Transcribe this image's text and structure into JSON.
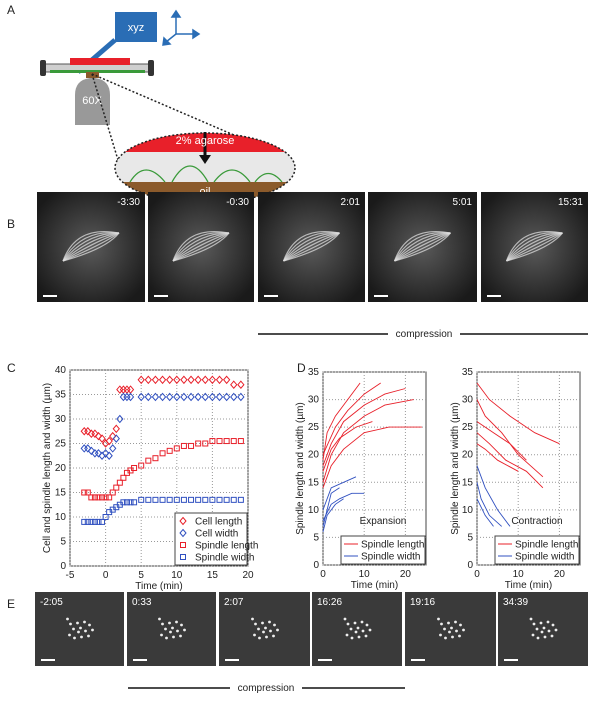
{
  "figure": {
    "panel_labels": [
      "A",
      "B",
      "C",
      "D",
      "E"
    ],
    "schematic": {
      "stage": "xyz",
      "objective": "60X",
      "top_layer": "2% agarose",
      "bottom_layer": "oil"
    },
    "panel_b": {
      "times": [
        "-3:30",
        "-0:30",
        "2:01",
        "5:01",
        "15:31"
      ],
      "label": "compression"
    },
    "panel_e": {
      "times": [
        "-2:05",
        "0:33",
        "2:07",
        "16:26",
        "19:16",
        "34:39"
      ],
      "label": "compression"
    }
  },
  "chart_data": [
    {
      "type": "scatter",
      "xlabel": "Time (min)",
      "ylabel": "Cell and spindle length and width (µm)",
      "xlim": [
        -5,
        20
      ],
      "xticks": [
        -5,
        0,
        5,
        10,
        15,
        20
      ],
      "ylim": [
        0,
        40
      ],
      "yticks": [
        0,
        5,
        10,
        15,
        20,
        25,
        30,
        35,
        40
      ],
      "grid": true,
      "legend": "lower right",
      "x": [
        -3,
        -2.5,
        -2,
        -1.5,
        -1,
        -0.5,
        0,
        0.5,
        1,
        1.5,
        2,
        2.5,
        3,
        3.5,
        4,
        5,
        6,
        7,
        8,
        9,
        10,
        11,
        12,
        13,
        14,
        15,
        16,
        17,
        18,
        19
      ],
      "series": [
        {
          "name": "Cell length",
          "color": "#e8202a",
          "marker": "diamond",
          "values": [
            27.5,
            27.5,
            27,
            27,
            26.5,
            26,
            25,
            25.5,
            26.5,
            28,
            36,
            36,
            36,
            36,
            null,
            38,
            38,
            38,
            38,
            38,
            38,
            38,
            38,
            38,
            38,
            38,
            38,
            38,
            37,
            37
          ]
        },
        {
          "name": "Cell width",
          "color": "#3050c0",
          "marker": "diamond",
          "values": [
            24,
            24,
            23.5,
            23,
            23,
            22.5,
            23,
            22.5,
            24,
            26,
            30,
            34.5,
            34.5,
            34.5,
            null,
            34.5,
            34.5,
            34.5,
            34.5,
            34.5,
            34.5,
            34.5,
            34.5,
            34.5,
            34.5,
            34.5,
            34.5,
            34.5,
            34.5,
            34.5
          ]
        },
        {
          "name": "Spindle length",
          "color": "#e8202a",
          "marker": "square",
          "values": [
            15,
            15,
            14,
            14,
            14,
            14,
            14,
            14,
            15,
            16,
            17,
            18,
            19,
            19.5,
            20,
            20.5,
            21.5,
            22,
            23,
            23.5,
            24,
            24.5,
            24.5,
            25,
            25,
            25.5,
            25.5,
            25.5,
            25.5,
            25.5
          ]
        },
        {
          "name": "Spindle width",
          "color": "#3050c0",
          "marker": "square",
          "values": [
            9,
            9,
            9,
            9,
            9,
            9,
            10,
            11,
            11.5,
            12,
            12.5,
            13,
            13,
            13,
            13,
            13.5,
            13.5,
            13.5,
            13.5,
            13.5,
            13.5,
            13.5,
            13.5,
            13.5,
            13.5,
            13.5,
            13.5,
            13.5,
            13.5,
            13.5
          ]
        }
      ]
    },
    {
      "type": "line",
      "xlabel": "Time (min)",
      "ylabel": "Spindle length and  width (µm)",
      "annotation": "Expansion",
      "xlim": [
        0,
        25
      ],
      "xticks": [
        0,
        10,
        20
      ],
      "ylim": [
        0,
        35
      ],
      "yticks": [
        0,
        5,
        10,
        15,
        20,
        25,
        30,
        35
      ],
      "grid": true,
      "legend": "lower right",
      "series": [
        {
          "name": "Spindle length",
          "color": "#e8202a",
          "lines": [
            {
              "x": [
                0,
                2,
                5,
                10,
                15,
                20
              ],
              "values": [
                18,
                22,
                26,
                29,
                31,
                32
              ]
            },
            {
              "x": [
                0,
                2,
                5,
                10,
                15,
                22
              ],
              "values": [
                15,
                20,
                24,
                27,
                29,
                30
              ]
            },
            {
              "x": [
                0,
                3,
                6,
                10,
                14
              ],
              "values": [
                20,
                25,
                28,
                31,
                33
              ]
            },
            {
              "x": [
                0,
                2,
                5,
                10,
                16,
                24
              ],
              "values": [
                14,
                18,
                21,
                24,
                25,
                25
              ]
            },
            {
              "x": [
                0,
                2,
                4,
                8,
                12
              ],
              "values": [
                17,
                21,
                23,
                25,
                26
              ]
            },
            {
              "x": [
                0,
                1,
                3,
                6,
                9
              ],
              "values": [
                19,
                24,
                27,
                30,
                33
              ]
            }
          ]
        },
        {
          "name": "Spindle width",
          "color": "#3050c0",
          "lines": [
            {
              "x": [
                0,
                2,
                4,
                7,
                10
              ],
              "values": [
                8,
                11,
                12,
                13,
                13
              ]
            },
            {
              "x": [
                0,
                1,
                3,
                5
              ],
              "values": [
                6,
                9,
                11,
                12
              ]
            },
            {
              "x": [
                0,
                2,
                5,
                8
              ],
              "values": [
                10,
                14,
                15,
                16
              ]
            },
            {
              "x": [
                0,
                1,
                2,
                4
              ],
              "values": [
                7,
                10,
                13,
                14
              ]
            }
          ]
        }
      ]
    },
    {
      "type": "line",
      "xlabel": "Time (min)",
      "ylabel": "Spindle length and  width (µm)",
      "annotation": "Contraction",
      "xlim": [
        0,
        25
      ],
      "xticks": [
        0,
        10,
        20
      ],
      "ylim": [
        0,
        35
      ],
      "yticks": [
        0,
        5,
        10,
        15,
        20,
        25,
        30,
        35
      ],
      "grid": true,
      "legend": "lower right",
      "series": [
        {
          "name": "Spindle length",
          "color": "#e8202a",
          "lines": [
            {
              "x": [
                0,
                3,
                8,
                14,
                20
              ],
              "values": [
                33,
                30,
                27,
                24,
                22
              ]
            },
            {
              "x": [
                0,
                2,
                6,
                10,
                16
              ],
              "values": [
                30,
                27,
                24,
                20,
                16
              ]
            },
            {
              "x": [
                0,
                4,
                8,
                12
              ],
              "values": [
                26,
                24,
                22,
                19
              ]
            },
            {
              "x": [
                0,
                3,
                7,
                12,
                16
              ],
              "values": [
                24,
                22,
                19,
                17,
                14
              ]
            },
            {
              "x": [
                0,
                2,
                5,
                10
              ],
              "values": [
                22,
                21,
                19,
                17
              ]
            }
          ]
        },
        {
          "name": "Spindle width",
          "color": "#3050c0",
          "lines": [
            {
              "x": [
                0,
                2,
                5,
                8
              ],
              "values": [
                18,
                14,
                10,
                7
              ]
            },
            {
              "x": [
                0,
                1,
                3,
                6
              ],
              "values": [
                15,
                12,
                9,
                7
              ]
            },
            {
              "x": [
                0,
                2,
                4
              ],
              "values": [
                12,
                9,
                7
              ]
            }
          ]
        }
      ]
    }
  ]
}
